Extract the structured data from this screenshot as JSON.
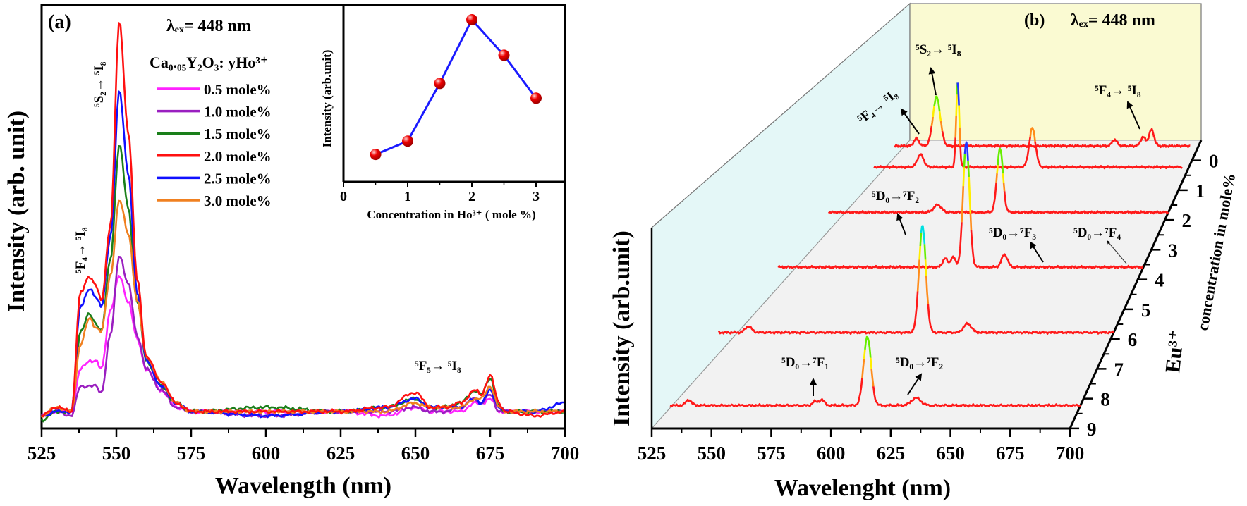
{
  "chart_data": [
    {
      "id": "a",
      "type": "line",
      "panel_label": "(a)",
      "excitation": "λₑₓ= 448 nm",
      "legend_title": "Ca₀.₀₅Y₂O₃: yHo³⁺",
      "xlabel": "Wavelength (nm)",
      "ylabel": "Intensity (arb. unit)",
      "xlim": [
        525,
        700
      ],
      "ylim": [
        0,
        100
      ],
      "xticks": [
        "525",
        "550",
        "575",
        "600",
        "625",
        "650",
        "675",
        "700"
      ],
      "annotations": [
        "⁵S₂→ ⁵I₈",
        "⁵F₄→ ⁵I₈",
        "⁵F₅→ ⁵I₈"
      ],
      "legend_position": "top-center",
      "x": [
        525,
        530,
        535,
        538,
        541,
        543,
        545,
        548,
        551,
        554,
        557,
        560,
        565,
        570,
        575,
        600,
        625,
        640,
        650,
        655,
        660,
        665,
        670,
        672,
        675,
        678,
        680,
        690,
        700
      ],
      "series": [
        {
          "name": "0.5 mole%",
          "color": "#ff22ff",
          "values": [
            3,
            4,
            4,
            14,
            16,
            16,
            14,
            28,
            36,
            30,
            21,
            14,
            9,
            5,
            4,
            4,
            4,
            3,
            5,
            4,
            4,
            4,
            6,
            6,
            7,
            4,
            4,
            4,
            4
          ]
        },
        {
          "name": "1.0 mole%",
          "color": "#9a1fc0",
          "values": [
            3,
            4,
            3,
            10,
            10,
            10,
            8.5,
            22,
            41,
            34,
            22,
            14,
            9,
            5,
            4,
            3,
            4,
            4,
            5,
            4,
            4,
            5,
            7,
            6,
            8,
            4,
            4,
            4,
            4
          ]
        },
        {
          "name": "1.5 mole%",
          "color": "#1a7f1a",
          "values": [
            2,
            4,
            4,
            23,
            27,
            25,
            23,
            40,
            67,
            52,
            30,
            16,
            10,
            6,
            4,
            5,
            4,
            5,
            7,
            5,
            5,
            6,
            9,
            8,
            12,
            5,
            4,
            4,
            4
          ]
        },
        {
          "name": "2.0 mole%",
          "color": "#ff1010",
          "values": [
            3,
            5,
            4,
            32,
            36,
            34,
            30,
            48,
            96,
            70,
            35,
            17,
            11,
            6,
            4,
            4,
            4,
            5,
            8.5,
            5,
            5,
            6,
            9,
            8,
            12.5,
            6,
            4,
            3,
            4
          ]
        },
        {
          "name": "2.5 mole%",
          "color": "#1010ff",
          "values": [
            3,
            4,
            4,
            29,
            33,
            31,
            29,
            45,
            80,
            60,
            32,
            16,
            10,
            6,
            4,
            3,
            4,
            5,
            7,
            5,
            5,
            5,
            7,
            6,
            9,
            5,
            4,
            4,
            6
          ]
        },
        {
          "name": "3.0 mole%",
          "color": "#f08020",
          "values": [
            3,
            5,
            4,
            20,
            26,
            24,
            23,
            36,
            54,
            46,
            30,
            17,
            11,
            6,
            4,
            4,
            4,
            4,
            6,
            5,
            5,
            5,
            7,
            7,
            10,
            5,
            4,
            4,
            4
          ]
        }
      ]
    },
    {
      "id": "a-inset",
      "type": "line",
      "xlabel": "Concentration in Ho³⁺ ( mole %)",
      "ylabel": "Intensity (arb.unit)",
      "xlim": [
        0,
        3
      ],
      "ylim": [
        0,
        1
      ],
      "xticks": [
        "0",
        "1",
        "2",
        "3"
      ],
      "line_color": "#1a1aff",
      "marker_color": "#ee0000",
      "x": [
        0.5,
        1.0,
        1.5,
        2.0,
        2.5,
        3.0
      ],
      "values": [
        0.09,
        0.18,
        0.57,
        1.0,
        0.76,
        0.47
      ]
    },
    {
      "id": "b",
      "type": "line",
      "panel_label": "(b)",
      "excitation": "λₑₓ= 448 nm",
      "xlabel": "Wavelenght (nm)",
      "ylabel": "Intensity (arb.unit)",
      "zlabel_main": "Eu³⁺",
      "zlabel_rest": "concentration in mole%",
      "xlim": [
        525,
        700
      ],
      "xticks": [
        "525",
        "550",
        "575",
        "600",
        "625",
        "650",
        "675",
        "700"
      ],
      "zticks": [
        "0",
        "1",
        "2",
        "3",
        "4",
        "5",
        "6",
        "7",
        "8",
        "9"
      ],
      "line_color": "#ff1a1a",
      "annotations": [
        "⁵S₂→ ⁵I₈",
        "⁵F₄→ ⁵I₈",
        "⁵F₄→ ⁵I₈",
        "⁵D₀→⁷F₂",
        "⁵D₀→⁷F₃",
        "⁵D₀→⁷F₄",
        "⁵D₀→⁷F₁",
        "⁵D₀→⁷F₂"
      ],
      "traces": [
        {
          "depth": 0.02,
          "range": [
            519,
            695
          ],
          "top_color": "#66ee00",
          "peaks": [
            {
              "wl": 544,
              "h": 0.39,
              "w": 2.2
            },
            {
              "wl": 532,
              "h": 0.06,
              "w": 1.5
            },
            {
              "wl": 672,
              "h": 0.13,
              "w": 1.5
            },
            {
              "wl": 667,
              "h": 0.07,
              "w": 1.5
            },
            {
              "wl": 650,
              "h": 0.05,
              "w": 1.5
            }
          ]
        },
        {
          "depth": 0.093,
          "range": [
            518,
            696
          ],
          "top_color": "#2233ff",
          "peaks": [
            {
              "wl": 566.5,
              "h": 0.67,
              "w": 0.9
            },
            {
              "wl": 609.6,
              "h": 0.31,
              "w": 1.8
            },
            {
              "wl": 545,
              "h": 0.1,
              "w": 1.8
            }
          ]
        },
        {
          "depth": 0.25,
          "range": [
            516,
            700
          ],
          "top_color": "#66ee00",
          "peaks": [
            {
              "wl": 608.8,
              "h": 0.51,
              "w": 1.6
            },
            {
              "wl": 575,
              "h": 0.06,
              "w": 2
            }
          ]
        },
        {
          "depth": 0.44,
          "range": [
            516,
            700
          ],
          "top_color": "#2233ff",
          "peaks": [
            {
              "wl": 610.7,
              "h": 1.0,
              "w": 1.6
            },
            {
              "wl": 630,
              "h": 0.1,
              "w": 1.5
            },
            {
              "wl": 600,
              "h": 0.07,
              "w": 1.2
            },
            {
              "wl": 604,
              "h": 0.08,
              "w": 1.2
            }
          ]
        },
        {
          "depth": 0.667,
          "range": [
            516,
            700
          ],
          "top_color": "#00e0e0",
          "peaks": [
            {
              "wl": 611,
              "h": 0.85,
              "w": 1.6
            },
            {
              "wl": 632,
              "h": 0.07,
              "w": 1.8
            },
            {
              "wl": 530,
              "h": 0.05,
              "w": 1.5
            }
          ]
        },
        {
          "depth": 0.92,
          "range": [
            524,
            700
          ],
          "top_color": "#66ee00",
          "peaks": [
            {
              "wl": 608.6,
              "h": 0.55,
              "w": 1.6
            },
            {
              "wl": 629.5,
              "h": 0.06,
              "w": 2
            },
            {
              "wl": 589,
              "h": 0.045,
              "w": 1.2
            },
            {
              "wl": 532,
              "h": 0.045,
              "w": 1.2
            },
            {
              "wl": 586,
              "h": 0.03,
              "w": 1
            }
          ]
        }
      ]
    }
  ]
}
